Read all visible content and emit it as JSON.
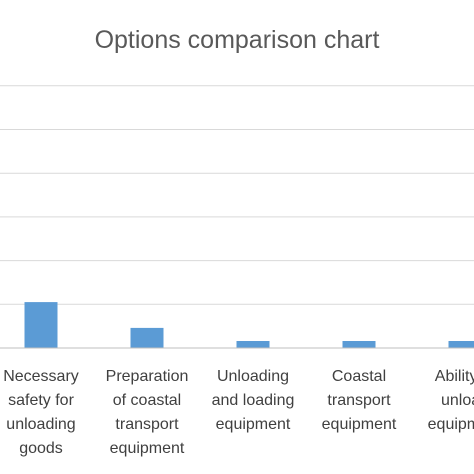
{
  "chart_data": {
    "type": "bar",
    "title": "Options comparison chart",
    "categories": [
      [
        "Necessary",
        "safety for",
        "unloading",
        "goods"
      ],
      [
        "Preparation",
        "of coastal",
        "transport",
        "equipment"
      ],
      [
        "Unloading",
        "and loading",
        "equipment"
      ],
      [
        "Coastal",
        "transport",
        "equipment"
      ],
      [
        "Ability to",
        "unload",
        "equipment"
      ]
    ],
    "values": [
      0.105,
      0.046,
      0.016,
      0.016,
      0.016
    ],
    "ylim": [
      0,
      0.6
    ],
    "gridlines": [
      0.1,
      0.2,
      0.3,
      0.4,
      0.5,
      0.6
    ],
    "grid": true,
    "legend": "none",
    "xlabel": "",
    "ylabel": "",
    "colors": {
      "bar": "#5b9bd5",
      "grid": "#d9d9d9",
      "axis": "#bfbfbf",
      "text": "#404040",
      "title": "#595959"
    }
  }
}
